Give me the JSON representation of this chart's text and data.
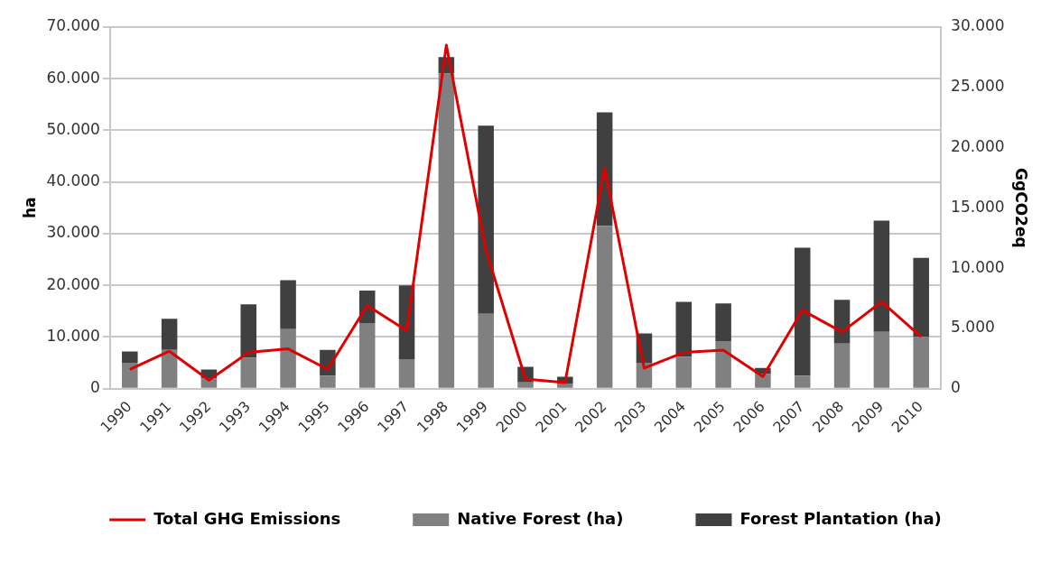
{
  "chart_data": {
    "type": "bar",
    "stacked": true,
    "ylabel": "ha",
    "y2label": "GgCO2eq",
    "categories": [
      "1990",
      "1991",
      "1992",
      "1993",
      "1994",
      "1995",
      "1996",
      "1997",
      "1998",
      "1999",
      "2000",
      "2001",
      "2002",
      "2003",
      "2004",
      "2005",
      "2006",
      "2007",
      "2008",
      "2009",
      "2010"
    ],
    "series": [
      {
        "name": "Native Forest (ha)",
        "color": "#808080",
        "values": [
          5000,
          7500,
          2000,
          6000,
          11500,
          2500,
          12700,
          5700,
          61000,
          14500,
          1200,
          1000,
          31500,
          5000,
          6200,
          9200,
          2800,
          2500,
          8700,
          11000,
          10000
        ]
      },
      {
        "name": "Forest Plantation (ha)",
        "color": "#404040",
        "values": [
          2200,
          6000,
          1700,
          10300,
          9500,
          5000,
          6300,
          14300,
          3200,
          36400,
          3000,
          1300,
          22000,
          5700,
          10600,
          7300,
          1200,
          24800,
          8500,
          21500,
          15300
        ]
      },
      {
        "name": "Total GHG Emissions",
        "type": "line",
        "axis": "y2",
        "color": "#e00000",
        "values": [
          1600,
          3100,
          700,
          3000,
          3300,
          1600,
          6900,
          4800,
          28500,
          11500,
          800,
          500,
          18300,
          1700,
          3000,
          3200,
          1000,
          6500,
          4700,
          7200,
          4300
        ]
      }
    ],
    "ylim": [
      0,
      70000
    ],
    "yticks": [
      0,
      {
        "value": 10000,
        "label": "10.000"
      },
      {
        "value": 20000,
        "label": "20.000"
      },
      {
        "value": 30000,
        "label": "30.000"
      },
      {
        "value": 40000,
        "label": "40.000"
      },
      {
        "value": 50000,
        "label": "50.000"
      },
      {
        "value": 60000,
        "label": "60.000"
      },
      {
        "value": 70000,
        "label": "70.000"
      }
    ],
    "y2lim": [
      0,
      30000
    ],
    "y2ticks": [
      0,
      {
        "value": 5000,
        "label": "5.000"
      },
      {
        "value": 10000,
        "label": "10.000"
      },
      {
        "value": 15000,
        "label": "15.000"
      },
      {
        "value": 20000,
        "label": "20.000"
      },
      {
        "value": 25000,
        "label": "25.000"
      },
      {
        "value": 30000,
        "label": "30.000"
      }
    ],
    "grid": "y",
    "legend": "bottom",
    "marker": "none",
    "line_style": "solid"
  }
}
